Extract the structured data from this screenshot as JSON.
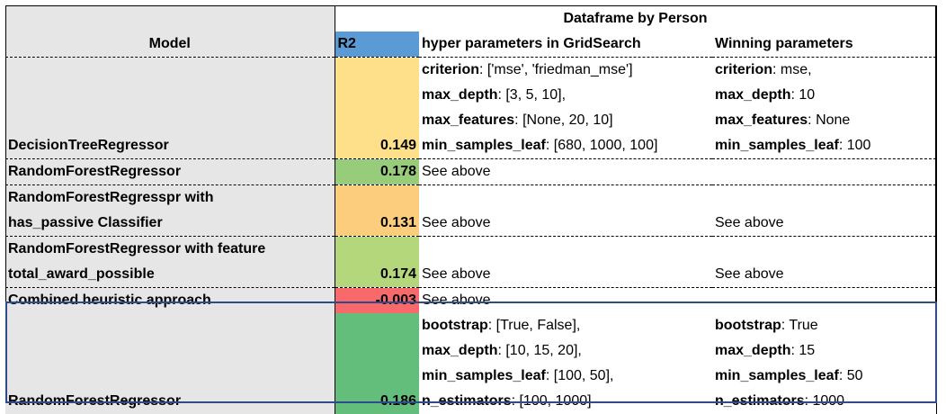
{
  "title": "Dataframe by Person",
  "headers": {
    "model": "Model",
    "r2": "R2",
    "hyper": "hyper parameters in GridSearch",
    "winning": "Winning parameters"
  },
  "rows": [
    {
      "model": "DecisionTreeRegressor",
      "r2": "0.149",
      "r2_color": "#ffe08a",
      "hyper": [
        {
          "k": "criterion",
          "v": ": ['mse', 'friedman_mse']"
        },
        {
          "k": "max_depth",
          "v": ": [3, 5, 10],"
        },
        {
          "k": "max_features",
          "v": ": [None, 20, 10]"
        },
        {
          "k": "min_samples_leaf",
          "v": ": [680, 1000, 100]"
        }
      ],
      "winning": [
        {
          "k": "criterion",
          "v": ": mse,"
        },
        {
          "k": "max_depth",
          "v": ": 10"
        },
        {
          "k": "max_features",
          "v": ": None"
        },
        {
          "k": "min_samples_leaf",
          "v": ": 100"
        }
      ]
    },
    {
      "model": "RandomForestRegressor",
      "r2": "0.178",
      "r2_color": "#97cc7a",
      "hyper_text": "See above",
      "winning_text": ""
    },
    {
      "model_lines": [
        "RandomForestRegresspr with",
        "has_passive Classifier"
      ],
      "r2": "0.131",
      "r2_color": "#fdcd7e",
      "hyper_text": "See above",
      "winning_text": "See above"
    },
    {
      "model_lines": [
        "RandomForestRegressor with feature",
        "total_award_possible"
      ],
      "r2": "0.174",
      "r2_color": "#b5d77b",
      "hyper_text": "See above",
      "winning_text": "See above"
    },
    {
      "model": "Combined heuristic approach",
      "r2": "-0.003",
      "r2_color": "#f8696b",
      "hyper_text": "See above",
      "winning_text": ""
    },
    {
      "model": "RandomForestRegressor",
      "r2": "0.186",
      "r2_color": "#63be7b",
      "hyper": [
        {
          "k": "bootstrap",
          "v": ": [True, False],"
        },
        {
          "k": "max_depth",
          "v": ": [10, 15, 20],"
        },
        {
          "k": "min_samples_leaf",
          "v": ": [100, 50],"
        },
        {
          "k": "n_estimators",
          "v": ": [100, 1000]"
        }
      ],
      "winning": [
        {
          "k": "bootstrap",
          "v": ": True"
        },
        {
          "k": "max_depth",
          "v": ": 15"
        },
        {
          "k": "min_samples_leaf",
          "v": ": 50"
        },
        {
          "k": "n_estimators",
          "v": ": 1000"
        }
      ]
    }
  ]
}
